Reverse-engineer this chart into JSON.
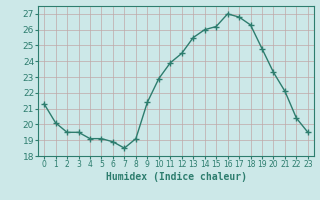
{
  "x": [
    0,
    1,
    2,
    3,
    4,
    5,
    6,
    7,
    8,
    9,
    10,
    11,
    12,
    13,
    14,
    15,
    16,
    17,
    18,
    19,
    20,
    21,
    22,
    23
  ],
  "y": [
    21.3,
    20.1,
    19.5,
    19.5,
    19.1,
    19.1,
    18.9,
    18.5,
    19.1,
    21.4,
    22.9,
    23.9,
    24.5,
    25.5,
    26.0,
    26.2,
    27.0,
    26.8,
    26.3,
    24.8,
    23.3,
    22.1,
    20.4,
    19.5
  ],
  "line_color": "#2d7d6e",
  "marker": "+",
  "marker_size": 5,
  "bg_color": "#cce8e8",
  "grid_color": "#c0a8a8",
  "xlabel": "Humidex (Indice chaleur)",
  "ylim": [
    18,
    27.5
  ],
  "xlim": [
    -0.5,
    23.5
  ],
  "yticks": [
    18,
    19,
    20,
    21,
    22,
    23,
    24,
    25,
    26,
    27
  ],
  "xticks": [
    0,
    1,
    2,
    3,
    4,
    5,
    6,
    7,
    8,
    9,
    10,
    11,
    12,
    13,
    14,
    15,
    16,
    17,
    18,
    19,
    20,
    21,
    22,
    23
  ],
  "xlabel_fontsize": 7,
  "tick_fontsize": 6,
  "line_width": 1.0
}
